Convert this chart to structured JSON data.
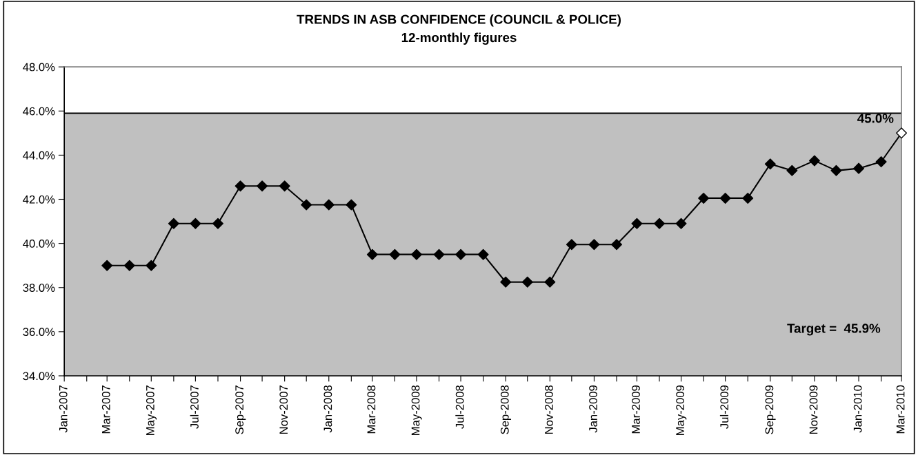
{
  "chart_data": {
    "type": "line",
    "title": "TRENDS IN ASB CONFIDENCE (COUNCIL & POLICE)",
    "subtitle": "12-monthly figures",
    "x": [
      "2007-03",
      "2007-04",
      "2007-05",
      "2007-06",
      "2007-07",
      "2007-08",
      "2007-09",
      "2007-10",
      "2007-11",
      "2007-12",
      "2008-01",
      "2008-02",
      "2008-03",
      "2008-04",
      "2008-05",
      "2008-06",
      "2008-07",
      "2008-08",
      "2008-09",
      "2008-10",
      "2008-11",
      "2008-12",
      "2009-01",
      "2009-02",
      "2009-03",
      "2009-04",
      "2009-05",
      "2009-06",
      "2009-07",
      "2009-08",
      "2009-09",
      "2009-10",
      "2009-11",
      "2009-12",
      "2010-01",
      "2010-02",
      "2010-03"
    ],
    "series": [
      {
        "color": "#000000",
        "values": [
          39.0,
          39.0,
          39.0,
          40.9,
          40.9,
          40.9,
          42.6,
          42.6,
          42.6,
          41.75,
          41.75,
          41.75,
          39.5,
          39.5,
          39.5,
          39.5,
          39.5,
          39.5,
          38.25,
          38.25,
          38.25,
          39.95,
          39.95,
          39.95,
          40.9,
          40.9,
          40.9,
          42.05,
          42.05,
          42.05,
          43.6,
          43.3,
          43.75,
          43.3,
          43.4,
          43.7,
          45.0
        ],
        "colors": [
          "#000000",
          "#000000",
          "#000000",
          "#000000",
          "#000000",
          "#000000",
          "#000000",
          "#000000",
          "#000000",
          "#000000",
          "#000000",
          "#000000",
          "#000000",
          "#000000",
          "#000000",
          "#000000",
          "#000000",
          "#000000",
          "#000000",
          "#000000",
          "#000000",
          "#000000",
          "#000000",
          "#000000",
          "#000000",
          "#000000",
          "#000000",
          "#000000",
          "#000000",
          "#000000",
          "#000000",
          "#000000",
          "#000000",
          "#000000",
          "#000000",
          "#000000",
          "#ffffff"
        ],
        "value_labels": [
          null,
          null,
          null,
          null,
          null,
          null,
          null,
          null,
          null,
          null,
          null,
          null,
          null,
          null,
          null,
          null,
          null,
          null,
          null,
          null,
          null,
          null,
          null,
          null,
          null,
          null,
          null,
          null,
          null,
          null,
          null,
          null,
          null,
          null,
          null,
          null,
          "45.0%"
        ]
      }
    ],
    "marker": "diamond",
    "line_style": "solid",
    "xlim": [
      "2007-01",
      "2010-03"
    ],
    "xticks": [
      {
        "value": "2007-01",
        "label": "Jan-2007"
      },
      {
        "value": "2007-02",
        "label": null
      },
      {
        "value": "2007-03",
        "label": "Mar-2007"
      },
      {
        "value": "2007-04",
        "label": null
      },
      {
        "value": "2007-05",
        "label": "May-2007"
      },
      {
        "value": "2007-06",
        "label": null
      },
      {
        "value": "2007-07",
        "label": "Jul-2007"
      },
      {
        "value": "2007-08",
        "label": null
      },
      {
        "value": "2007-09",
        "label": "Sep-2007"
      },
      {
        "value": "2007-10",
        "label": null
      },
      {
        "value": "2007-11",
        "label": "Nov-2007"
      },
      {
        "value": "2007-12",
        "label": null
      },
      {
        "value": "2008-01",
        "label": "Jan-2008"
      },
      {
        "value": "2008-02",
        "label": null
      },
      {
        "value": "2008-03",
        "label": "Mar-2008"
      },
      {
        "value": "2008-04",
        "label": null
      },
      {
        "value": "2008-05",
        "label": "May-2008"
      },
      {
        "value": "2008-06",
        "label": null
      },
      {
        "value": "2008-07",
        "label": "Jul-2008"
      },
      {
        "value": "2008-08",
        "label": null
      },
      {
        "value": "2008-09",
        "label": "Sep-2008"
      },
      {
        "value": "2008-10",
        "label": null
      },
      {
        "value": "2008-11",
        "label": "Nov-2008"
      },
      {
        "value": "2008-12",
        "label": null
      },
      {
        "value": "2009-01",
        "label": "Jan-2009"
      },
      {
        "value": "2009-02",
        "label": null
      },
      {
        "value": "2009-03",
        "label": "Mar-2009"
      },
      {
        "value": "2009-04",
        "label": null
      },
      {
        "value": "2009-05",
        "label": "May-2009"
      },
      {
        "value": "2009-06",
        "label": null
      },
      {
        "value": "2009-07",
        "label": "Jul-2009"
      },
      {
        "value": "2009-08",
        "label": null
      },
      {
        "value": "2009-09",
        "label": "Sep-2009"
      },
      {
        "value": "2009-10",
        "label": null
      },
      {
        "value": "2009-11",
        "label": "Nov-2009"
      },
      {
        "value": "2009-12",
        "label": null
      },
      {
        "value": "2010-01",
        "label": "Jan-2010"
      },
      {
        "value": "2010-02",
        "label": null
      },
      {
        "value": "2010-03",
        "label": "Mar-2010"
      }
    ],
    "ylim": [
      34,
      48
    ],
    "yticks": [
      {
        "value": 34,
        "label": "34.0%"
      },
      {
        "value": 36,
        "label": "36.0%"
      },
      {
        "value": 38,
        "label": "38.0%"
      },
      {
        "value": 40,
        "label": "40.0%"
      },
      {
        "value": 42,
        "label": "42.0%"
      },
      {
        "value": 44,
        "label": "44.0%"
      },
      {
        "value": 46,
        "label": "46.0%"
      },
      {
        "value": 48,
        "label": "48.0%"
      }
    ],
    "bands": [
      {
        "axis": "y",
        "from": 34,
        "to": 45.9,
        "color": "#c0c0c0",
        "label": "Target =  45.9%"
      }
    ],
    "ref_lines": [
      {
        "axis": "y",
        "value": 45.9,
        "color": "#000000",
        "line_style": "solid"
      }
    ],
    "grid": false,
    "legend": false
  }
}
